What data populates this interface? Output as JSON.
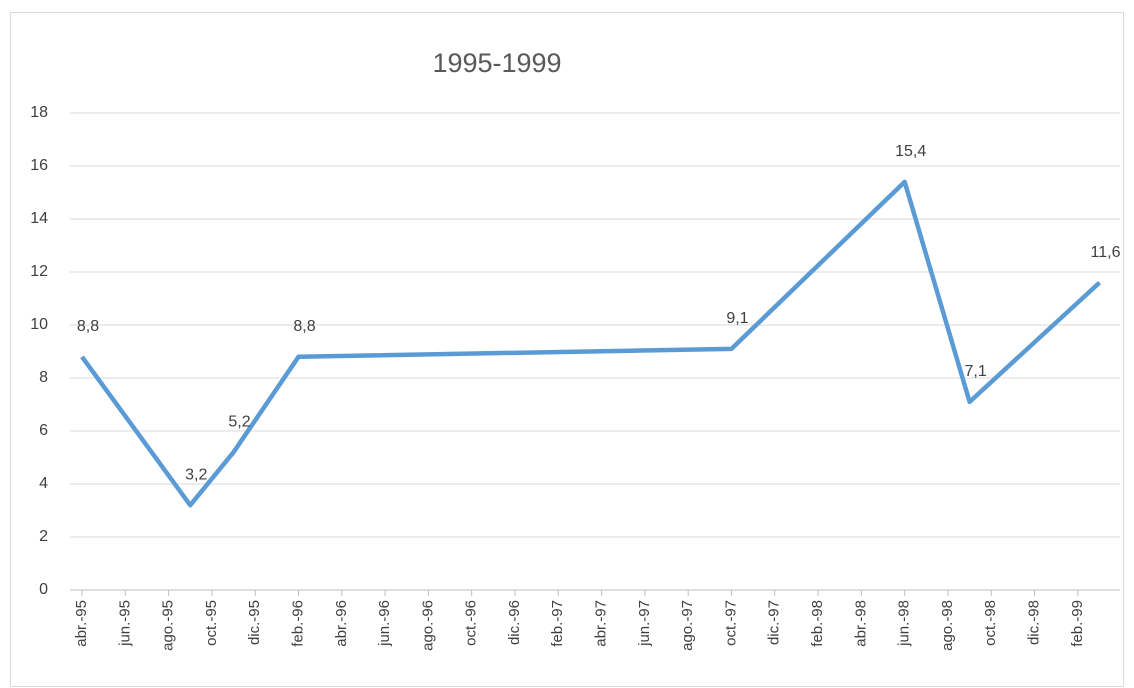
{
  "chart_data": {
    "type": "line",
    "title": "1995-1999",
    "x": [
      "1995-04",
      "1995-09",
      "1995-11",
      "1996-02",
      "1997-10",
      "1998-06",
      "1998-09",
      "1999-03"
    ],
    "values": [
      8.8,
      3.2,
      5.2,
      8.8,
      9.1,
      15.4,
      7.1,
      11.6
    ],
    "value_labels": [
      "8,8",
      "3,2",
      "5,2",
      "8,8",
      "9,1",
      "15,4",
      "7,1",
      "11,6"
    ],
    "color": "#5b9bd5",
    "xlim": [
      "1995-04",
      "1999-03"
    ],
    "xticks": [
      {
        "value": "1995-04",
        "label": "abr.-95"
      },
      {
        "value": "1995-06",
        "label": "jun.-95"
      },
      {
        "value": "1995-08",
        "label": "ago.-95"
      },
      {
        "value": "1995-10",
        "label": "oct.-95"
      },
      {
        "value": "1995-12",
        "label": "dic.-95"
      },
      {
        "value": "1996-02",
        "label": "feb.-96"
      },
      {
        "value": "1996-04",
        "label": "abr.-96"
      },
      {
        "value": "1996-06",
        "label": "jun.-96"
      },
      {
        "value": "1996-08",
        "label": "ago.-96"
      },
      {
        "value": "1996-10",
        "label": "oct.-96"
      },
      {
        "value": "1996-12",
        "label": "dic.-96"
      },
      {
        "value": "1997-02",
        "label": "feb.-97"
      },
      {
        "value": "1997-04",
        "label": "abr.-97"
      },
      {
        "value": "1997-06",
        "label": "jun.-97"
      },
      {
        "value": "1997-08",
        "label": "ago.-97"
      },
      {
        "value": "1997-10",
        "label": "oct.-97"
      },
      {
        "value": "1997-12",
        "label": "dic.-97"
      },
      {
        "value": "1998-02",
        "label": "feb.-98"
      },
      {
        "value": "1998-04",
        "label": "abr.-98"
      },
      {
        "value": "1998-06",
        "label": "jun.-98"
      },
      {
        "value": "1998-08",
        "label": "ago.-98"
      },
      {
        "value": "1998-10",
        "label": "oct.-98"
      },
      {
        "value": "1998-12",
        "label": "dic.-98"
      },
      {
        "value": "1999-02",
        "label": "feb.-99"
      }
    ],
    "ylim": [
      0,
      18
    ],
    "yticks": [
      0,
      2,
      4,
      6,
      8,
      10,
      12,
      14,
      16,
      18
    ],
    "grid": true
  }
}
